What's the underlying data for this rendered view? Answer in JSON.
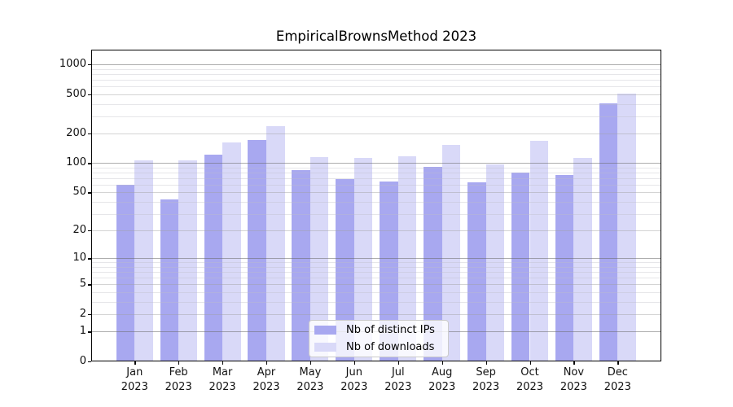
{
  "figure": {
    "background": "#ffffff"
  },
  "chart_data": {
    "type": "bar",
    "title": "EmpiricalBrownsMethod 2023",
    "categories": [
      "Jan 2023",
      "Feb 2023",
      "Mar 2023",
      "Apr 2023",
      "May 2023",
      "Jun 2023",
      "Jul 2023",
      "Aug 2023",
      "Sep 2023",
      "Oct 2023",
      "Nov 2023",
      "Dec 2023"
    ],
    "series": [
      {
        "name": "Nb of distinct IPs",
        "color": "#a8a8f0",
        "values": [
          60,
          42,
          121,
          172,
          85,
          69,
          65,
          91,
          64,
          80,
          75,
          405
        ]
      },
      {
        "name": "Nb of downloads",
        "color": "#d9d9f8",
        "values": [
          106,
          106,
          163,
          237,
          116,
          113,
          118,
          153,
          96,
          169,
          113,
          508
        ]
      }
    ],
    "xlabel": "",
    "ylabel": "",
    "y_ticks": [
      0,
      1,
      2,
      5,
      10,
      20,
      50,
      100,
      200,
      500,
      1000
    ],
    "y_scale": "log10(value+1)",
    "ylim": [
      0,
      1412
    ],
    "grid": "horizontal; major lines at 1,10,100,1000; lighter lines at labeled ticks; faint log minors; grid drawn over bars",
    "legend_position": "lower center",
    "style": {
      "grid_major_color": "#696969",
      "grid_mid_color": "#a0a0a0",
      "grid_minor_color": "#bebec4",
      "spine_color": "#000000",
      "tick_label_color": "#111111"
    }
  }
}
